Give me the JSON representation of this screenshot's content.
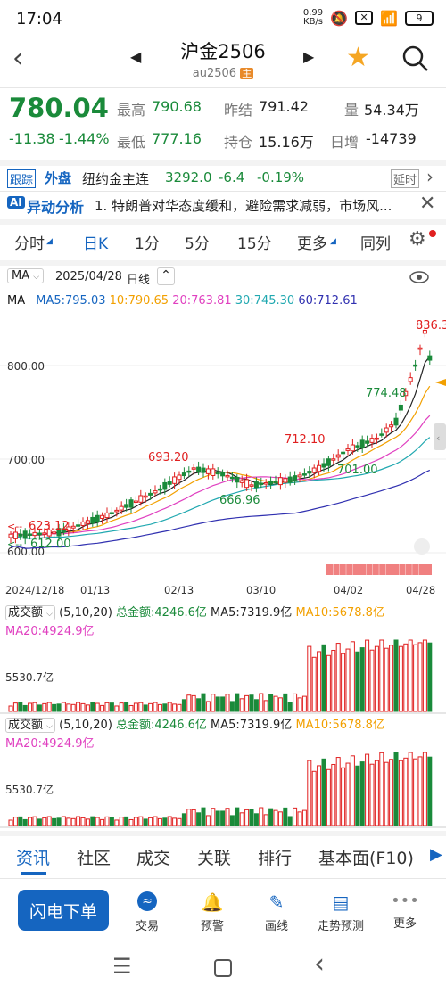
{
  "status_bar": {
    "time": "17:04",
    "network_speed": "0.99\nKB/s",
    "battery": "9"
  },
  "header": {
    "title": "沪金2506",
    "code": "au2506",
    "main_badge": "主"
  },
  "quote": {
    "price": "780.04",
    "change": "-11.38",
    "change_pct": "-1.44%",
    "high_label": "最高",
    "high": "790.68",
    "low_label": "最低",
    "low": "777.16",
    "prev_settle_label": "昨结",
    "prev_settle": "791.42",
    "open_interest_label": "持仓",
    "open_interest": "15.16万",
    "volume_label": "量",
    "volume": "54.34万",
    "daily_inc_label": "日增",
    "daily_inc": "-14739"
  },
  "external": {
    "badge": "跟踪",
    "tag": "外盘",
    "name": "纽约金主连",
    "price": "3292.0",
    "change": "-6.4",
    "change_pct": "-0.19%",
    "delay": "延时"
  },
  "ai": {
    "badge": "AI",
    "title": "异动分析",
    "text": "1. 特朗普对华态度缓和，避险需求减弱，市场风..."
  },
  "tabs": [
    "分时",
    "日K",
    "1分",
    "5分",
    "15分",
    "更多",
    "同列"
  ],
  "chart_header": {
    "indicator": "MA",
    "date": "2025/04/28",
    "period": "日线"
  },
  "ma_line": {
    "ma": "MA",
    "ma5": "MA5:795.03",
    "ma10": "10:790.65",
    "ma20": "20:763.81",
    "ma30": "30:745.30",
    "ma60": "60:712.61"
  },
  "colors": {
    "up": "#e02020",
    "down": "#1a8a3a",
    "accent": "#1565c0",
    "ma5": "#222222",
    "ma10": "#f2a000",
    "ma20": "#e040c0",
    "ma30": "#20a8b0",
    "ma60": "#3030b0"
  },
  "chart_data": {
    "type": "candlestick",
    "y_ticks": [
      "800.00",
      "700.00",
      "600.00"
    ],
    "ylim": [
      600,
      800
    ],
    "x_ticks": [
      "2024/12/18",
      "01/13",
      "02/13",
      "03/10",
      "04/02",
      "04/28"
    ],
    "annotations": [
      "836.30",
      "774.48",
      "712.10",
      "693.20",
      "701.00",
      "666.96",
      "623.12",
      "612.00"
    ]
  },
  "volume_panel": {
    "selector": "成交额",
    "params": "(5,10,20)",
    "total": "总金额:4246.6亿",
    "ma5": "MA5:7319.9亿",
    "ma10": "MA10:5678.8亿",
    "ma20": "MA20:4924.9亿",
    "level": "5530.7亿"
  },
  "bottom_tabs": [
    "资讯",
    "社区",
    "成交",
    "关联",
    "排行",
    "基本面(F10)"
  ],
  "action_bar": {
    "flash_order": "闪电下单",
    "trade": "交易",
    "alert": "预警",
    "draw": "画线",
    "forecast": "走势预测",
    "more": "更多"
  }
}
